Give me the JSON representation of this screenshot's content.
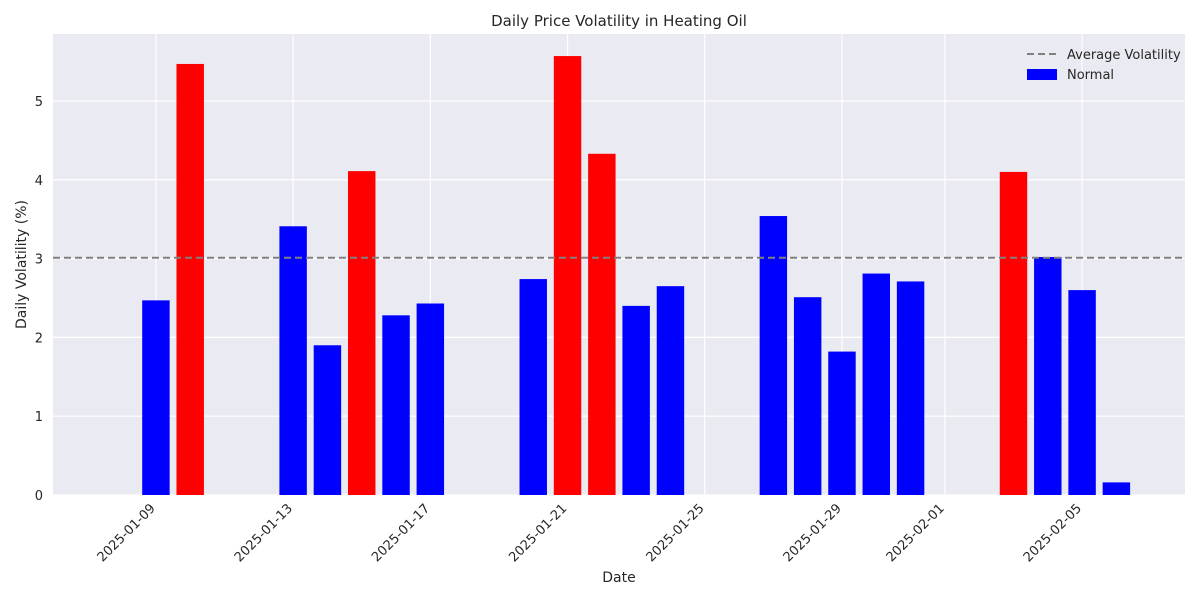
{
  "chart_data": {
    "type": "bar",
    "title": "Daily Price Volatility in Heating Oil",
    "xlabel": "Date",
    "ylabel": "Daily Volatility (%)",
    "xlim": [
      "2025-01-06",
      "2025-02-08"
    ],
    "ylim": [
      0,
      5.85
    ],
    "x_ticks": [
      "2025-01-09",
      "2025-01-13",
      "2025-01-17",
      "2025-01-21",
      "2025-01-25",
      "2025-01-29",
      "2025-02-01",
      "2025-02-05"
    ],
    "y_ticks": [
      0,
      1,
      2,
      3,
      4,
      5
    ],
    "grid": true,
    "legend_position": "top-right",
    "average_volatility": 3.01,
    "colors": {
      "normal": "#0000ff",
      "high": "#ff0000",
      "average_line": "#808080",
      "plot_background": "#eaeaf2",
      "grid": "#ffffff"
    },
    "legend": [
      {
        "label": "Average Volatility",
        "style": "dashed-line",
        "color": "#808080"
      },
      {
        "label": "Normal",
        "style": "patch",
        "color": "#0000ff"
      }
    ],
    "bars": [
      {
        "date": "2025-01-09",
        "value": 2.47,
        "category": "normal"
      },
      {
        "date": "2025-01-10",
        "value": 5.47,
        "category": "high"
      },
      {
        "date": "2025-01-13",
        "value": 3.41,
        "category": "normal"
      },
      {
        "date": "2025-01-14",
        "value": 1.9,
        "category": "normal"
      },
      {
        "date": "2025-01-15",
        "value": 4.11,
        "category": "high"
      },
      {
        "date": "2025-01-16",
        "value": 2.28,
        "category": "normal"
      },
      {
        "date": "2025-01-17",
        "value": 2.43,
        "category": "normal"
      },
      {
        "date": "2025-01-20",
        "value": 2.74,
        "category": "normal"
      },
      {
        "date": "2025-01-21",
        "value": 5.57,
        "category": "high"
      },
      {
        "date": "2025-01-22",
        "value": 4.33,
        "category": "high"
      },
      {
        "date": "2025-01-23",
        "value": 2.4,
        "category": "normal"
      },
      {
        "date": "2025-01-24",
        "value": 2.65,
        "category": "normal"
      },
      {
        "date": "2025-01-27",
        "value": 3.54,
        "category": "normal"
      },
      {
        "date": "2025-01-28",
        "value": 2.51,
        "category": "normal"
      },
      {
        "date": "2025-01-29",
        "value": 1.82,
        "category": "normal"
      },
      {
        "date": "2025-01-30",
        "value": 2.81,
        "category": "normal"
      },
      {
        "date": "2025-01-31",
        "value": 2.71,
        "category": "normal"
      },
      {
        "date": "2025-02-03",
        "value": 4.1,
        "category": "high"
      },
      {
        "date": "2025-02-04",
        "value": 3.02,
        "category": "normal"
      },
      {
        "date": "2025-02-05",
        "value": 2.6,
        "category": "normal"
      },
      {
        "date": "2025-02-06",
        "value": 0.16,
        "category": "normal"
      }
    ]
  }
}
